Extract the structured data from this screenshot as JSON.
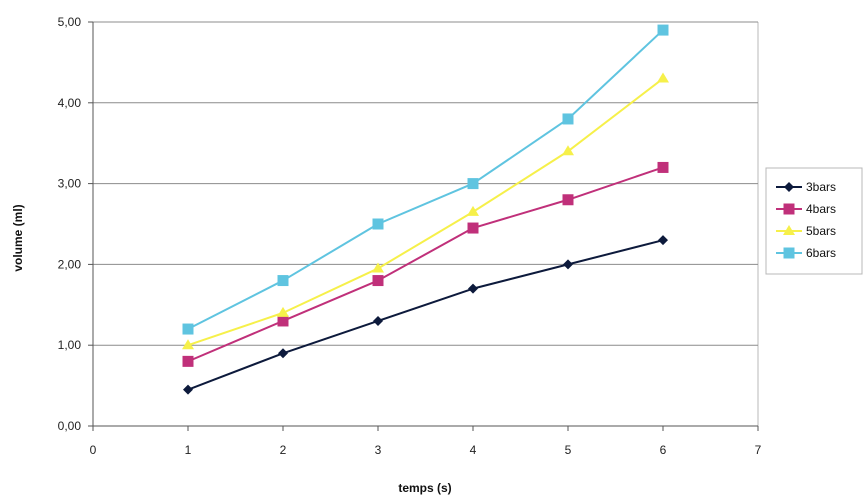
{
  "chart_data": {
    "type": "line",
    "title": "",
    "xlabel": "temps (s)",
    "ylabel": "volume (ml)",
    "xlim": [
      0,
      7
    ],
    "ylim": [
      0,
      5
    ],
    "x_ticks": [
      "0",
      "1",
      "2",
      "3",
      "4",
      "5",
      "6",
      "7"
    ],
    "y_ticks": [
      "0,00",
      "1,00",
      "2,00",
      "3,00",
      "4,00",
      "5,00"
    ],
    "grid": "horizontal",
    "legend_position": "right",
    "x": [
      1,
      2,
      3,
      4,
      5,
      6
    ],
    "series": [
      {
        "name": "3bars",
        "color": "#0d1a3c",
        "marker": "diamond",
        "values": [
          0.45,
          0.9,
          1.3,
          1.7,
          2.0,
          2.3
        ]
      },
      {
        "name": "4bars",
        "color": "#c0307a",
        "marker": "square",
        "values": [
          0.8,
          1.3,
          1.8,
          2.45,
          2.8,
          3.2
        ]
      },
      {
        "name": "5bars",
        "color": "#f6f04a",
        "marker": "triangle",
        "values": [
          1.0,
          1.4,
          1.95,
          2.65,
          3.4,
          4.3
        ]
      },
      {
        "name": "6bars",
        "color": "#5fc4e0",
        "marker": "square",
        "values": [
          1.2,
          1.8,
          2.5,
          3.0,
          3.8,
          4.9
        ]
      }
    ]
  }
}
